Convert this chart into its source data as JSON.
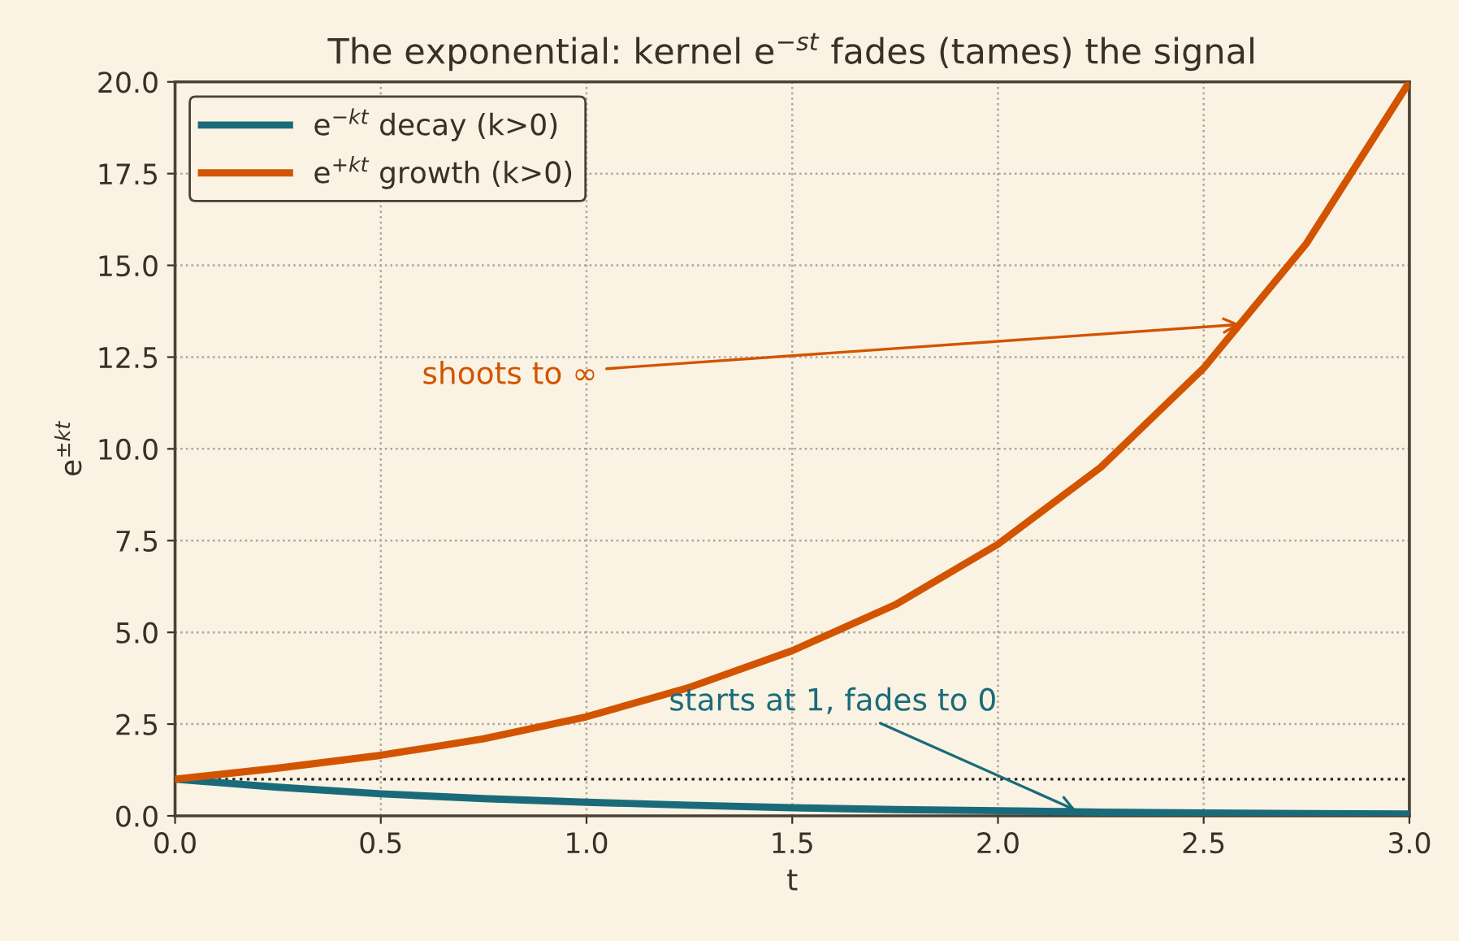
{
  "chart_data": {
    "type": "line",
    "title": "The exponential: kernel e$^{−st}$ fades (tames) the signal",
    "xlabel": "t",
    "ylabel": "e$^{±kt}$",
    "x": [
      0,
      0.25,
      0.5,
      0.75,
      1.0,
      1.25,
      1.5,
      1.75,
      2.0,
      2.25,
      2.5,
      2.75,
      3.0
    ],
    "series": [
      {
        "name": "e$^{−kt}$ decay (k>0)",
        "color": "#1a6b7a",
        "values": [
          1.0,
          0.78,
          0.6,
          0.47,
          0.37,
          0.29,
          0.22,
          0.17,
          0.14,
          0.1,
          0.08,
          0.06,
          0.05
        ]
      },
      {
        "name": "e$^{+kt}$ growth (k>0)",
        "color": "#d35400",
        "values": [
          1.0,
          1.3,
          1.65,
          2.1,
          2.7,
          3.5,
          4.5,
          5.75,
          7.4,
          9.5,
          12.2,
          15.6,
          20.0
        ]
      }
    ],
    "xlim": [
      0,
      3
    ],
    "xticks": [
      {
        "value": 0,
        "label": "0.0"
      },
      0.5,
      {
        "value": 1,
        "label": "1.0"
      },
      1.5,
      {
        "value": 2,
        "label": "2.0"
      },
      2.5,
      {
        "value": 3,
        "label": "3.0"
      }
    ],
    "ylim": [
      0,
      20
    ],
    "yticks": [
      {
        "value": 0,
        "label": "0.0"
      },
      2.5,
      {
        "value": 5,
        "label": "5.0"
      },
      7.5,
      {
        "value": 10,
        "label": "10.0"
      },
      12.5,
      {
        "value": 15,
        "label": "15.0"
      },
      17.5,
      {
        "value": 20,
        "label": "20.0"
      }
    ],
    "ref_lines": [
      {
        "axis": "y",
        "value": 1,
        "color": "#222222",
        "line_style": "dotted"
      }
    ],
    "annotations": [
      {
        "text": "shoots to ∞",
        "x": 2.6,
        "y": 13.4
      },
      {
        "text": "starts at 1, fades to 0",
        "x": 2.2,
        "y": 0.1
      }
    ],
    "grid": true,
    "legend": "top left",
    "marker": "none",
    "line_style": "solid"
  }
}
